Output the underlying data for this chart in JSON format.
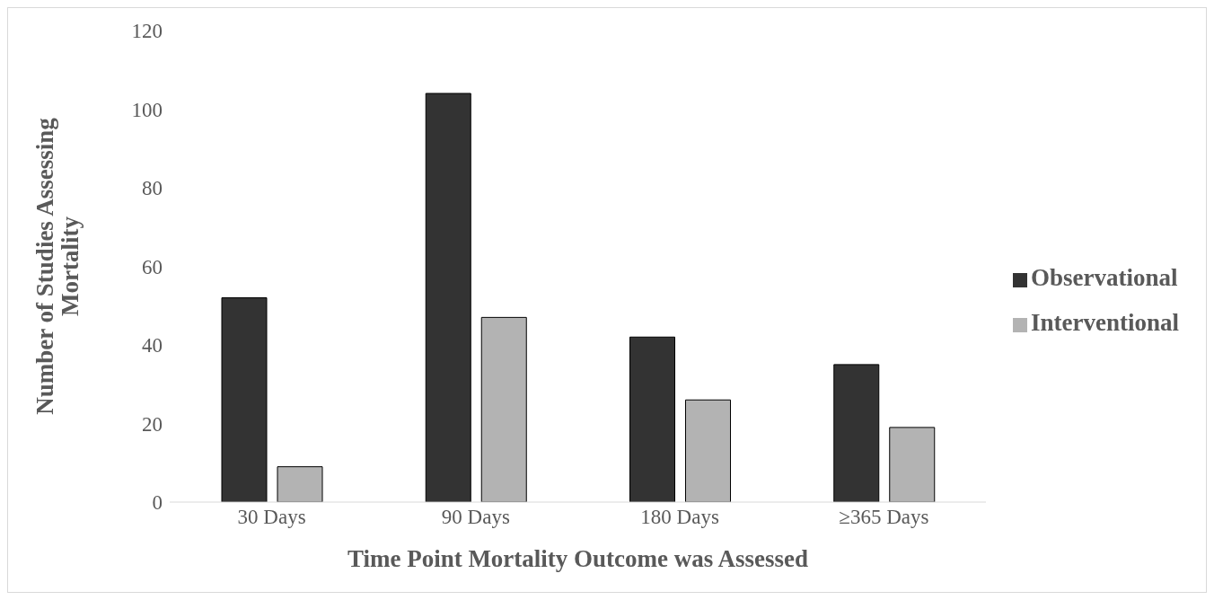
{
  "chart_data": {
    "type": "bar",
    "xlabel": "Time Point Mortality Outcome was Assessed",
    "ylabel": "Number of Studies Assessing Mortality",
    "categories": [
      "30 Days",
      "90 Days",
      "180 Days",
      "≥365 Days"
    ],
    "series": [
      {
        "name": "Observational",
        "color": "#333333",
        "values": [
          52,
          104,
          42,
          35
        ]
      },
      {
        "name": "Interventional",
        "color": "#b3b3b3",
        "values": [
          9,
          47,
          26,
          19
        ]
      }
    ],
    "ylim": [
      0,
      120
    ],
    "yticks": [
      0,
      20,
      40,
      60,
      80,
      100,
      120
    ],
    "grid": false,
    "legend": "right"
  }
}
